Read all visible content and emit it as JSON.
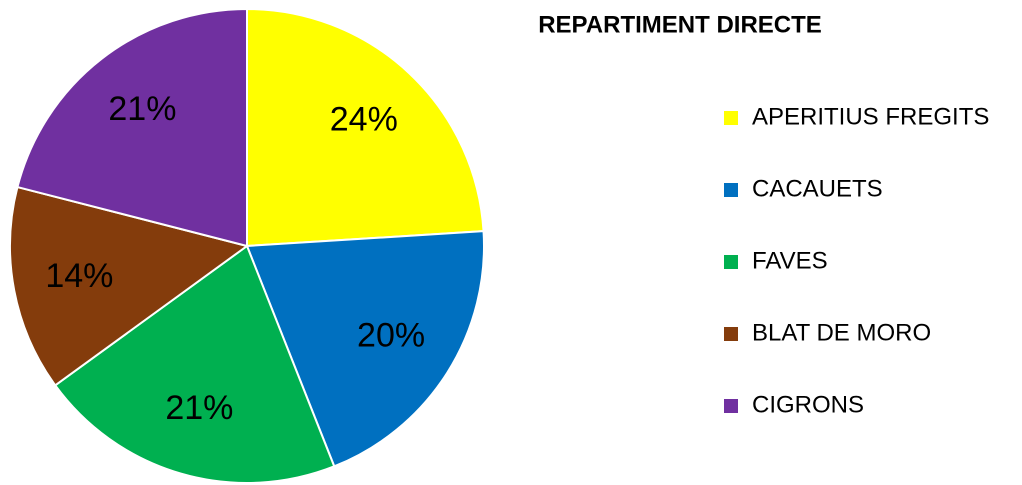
{
  "chart_data": {
    "type": "pie",
    "title": "REPARTIMENT DIRECTE",
    "categories": [
      "APERITIUS FREGITS",
      "CACAUETS",
      "FAVES",
      "BLAT DE MORO",
      "CIGRONS"
    ],
    "values": [
      24,
      20,
      21,
      14,
      21
    ],
    "value_labels": [
      "24%",
      "20%",
      "21%",
      "14%",
      "21%"
    ],
    "colors": [
      "#ffff00",
      "#0070c0",
      "#00b050",
      "#843c0c",
      "#7030a0"
    ],
    "legend": "right"
  }
}
